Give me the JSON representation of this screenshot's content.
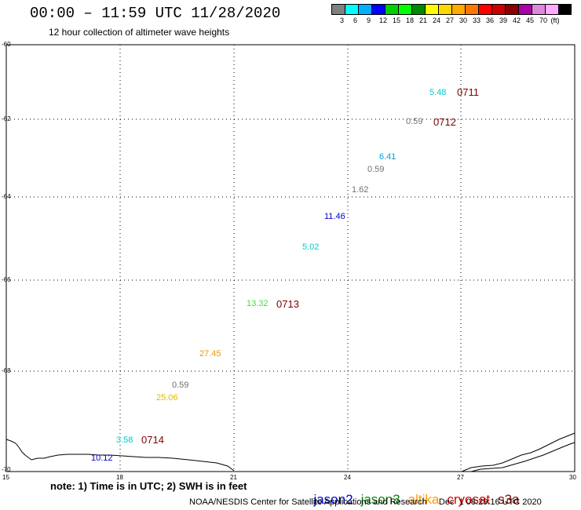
{
  "header": {
    "title": "00:00 – 11:59 UTC 11/28/2020",
    "subtitle": "12 hour collection of altimeter wave heights"
  },
  "color_scale": {
    "colors": [
      "#808080",
      "#00ffff",
      "#00b0ff",
      "#0000ff",
      "#00d000",
      "#00ff00",
      "#008800",
      "#ffff00",
      "#ffd700",
      "#ffaa00",
      "#ff7700",
      "#ff0000",
      "#cc0000",
      "#880000",
      "#aa00aa",
      "#dd88dd",
      "#ffaaff",
      "#000000"
    ],
    "labels": [
      "3",
      "6",
      "9",
      "12",
      "15",
      "18",
      "21",
      "24",
      "27",
      "30",
      "33",
      "36",
      "39",
      "42",
      "45",
      "70"
    ],
    "unit": "(ft)"
  },
  "axes": {
    "y_labels": [
      "-60",
      "-62",
      "-64",
      "-66",
      "-68",
      "-70"
    ],
    "x_labels": [
      "15",
      "18",
      "21",
      "24",
      "27",
      "30"
    ]
  },
  "wave_heights": [
    {
      "value": "5.48",
      "color": "#00cccc"
    },
    {
      "value": "0.59",
      "color": "#707070"
    },
    {
      "value": "6.41",
      "color": "#00a0dd"
    },
    {
      "value": "0.59",
      "color": "#707070"
    },
    {
      "value": "1.62",
      "color": "#707070"
    },
    {
      "value": "11.46",
      "color": "#0000cc"
    },
    {
      "value": "5.02",
      "color": "#00cccc"
    },
    {
      "value": "13.32",
      "color": "#44dd44"
    },
    {
      "value": "27.45",
      "color": "#ee9900"
    },
    {
      "value": "0.59",
      "color": "#707070"
    },
    {
      "value": "25.06",
      "color": "#ddbb00"
    },
    {
      "value": "3.58",
      "color": "#00cccc"
    },
    {
      "value": "10.12",
      "color": "#0000cc"
    }
  ],
  "pass_times": [
    "0711",
    "0712",
    "0713",
    "0714"
  ],
  "footer": {
    "note": "note: 1) Time is in UTC; 2) SWH is in feet",
    "satellites": [
      {
        "name": "jason2",
        "color": "#0000cc"
      },
      {
        "name": "jason3",
        "color": "#008800"
      },
      {
        "name": "altika",
        "color": "#ff9900"
      },
      {
        "name": "cryosat",
        "color": "#dd0000"
      },
      {
        "name": "s3a",
        "color": "#880000"
      }
    ],
    "credit": "NOAA/NESDIS Center for Satellite Applications and Research     Dec  1 08:29:16 UTC 2020"
  }
}
